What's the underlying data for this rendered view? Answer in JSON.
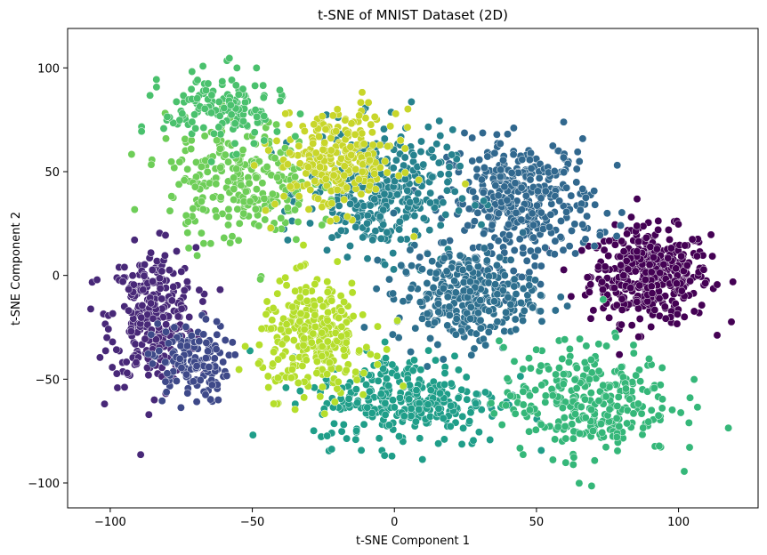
{
  "chart_data": {
    "type": "scatter",
    "title": "t-SNE of MNIST Dataset (2D)",
    "xlabel": "t-SNE Component 1",
    "ylabel": "t-SNE Component 2",
    "xlim": [
      -115,
      128
    ],
    "ylim": [
      -112,
      119
    ],
    "xticks": [
      -100,
      -50,
      0,
      50,
      100
    ],
    "xtick_labels": [
      "−100",
      "−50",
      "0",
      "50",
      "100"
    ],
    "yticks": [
      -100,
      -50,
      0,
      50,
      100
    ],
    "ytick_labels": [
      "−100",
      "−50",
      "0",
      "50",
      "100"
    ],
    "grid": false,
    "legend": "none",
    "marker_edge_color": "#ffffff",
    "clusters": [
      {
        "color": "#440154",
        "center": [
          90,
          0
        ],
        "spread": [
          14,
          15
        ],
        "count": 420
      },
      {
        "color": "#482878",
        "center": [
          -85,
          -20
        ],
        "spread": [
          10,
          22
        ],
        "count": 300
      },
      {
        "color": "#3e4989",
        "center": [
          -72,
          -42
        ],
        "spread": [
          9,
          13
        ],
        "count": 140
      },
      {
        "color": "#31688e",
        "center": [
          45,
          35
        ],
        "spread": [
          17,
          20
        ],
        "count": 380
      },
      {
        "color": "#26828e",
        "center": [
          -5,
          40
        ],
        "spread": [
          17,
          20
        ],
        "count": 340
      },
      {
        "color": "#1f9e89",
        "center": [
          5,
          -60
        ],
        "spread": [
          22,
          15
        ],
        "count": 300
      },
      {
        "color": "#2e6f8e",
        "center": [
          25,
          -10
        ],
        "spread": [
          17,
          15
        ],
        "count": 300
      },
      {
        "color": "#35b779",
        "center": [
          68,
          -60
        ],
        "spread": [
          20,
          18
        ],
        "count": 310
      },
      {
        "color": "#6ece58",
        "center": [
          -55,
          45
        ],
        "spread": [
          17,
          20
        ],
        "count": 260
      },
      {
        "color": "#b5de2b",
        "center": [
          -28,
          -30
        ],
        "spread": [
          13,
          18
        ],
        "count": 300
      },
      {
        "color": "#c8d62a",
        "center": [
          -20,
          55
        ],
        "spread": [
          14,
          16
        ],
        "count": 260
      },
      {
        "color": "#4ac16d",
        "center": [
          -60,
          80
        ],
        "spread": [
          14,
          12
        ],
        "count": 150
      }
    ]
  }
}
